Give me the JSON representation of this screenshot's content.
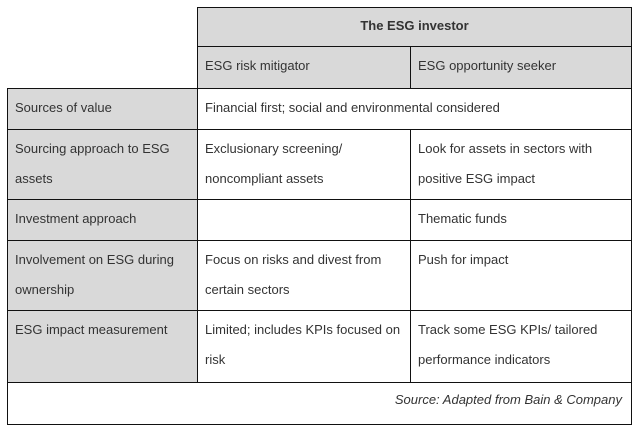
{
  "table": {
    "group_header": "The ESG investor",
    "columns": [
      "ESG risk mitigator",
      "ESG opportunity seeker"
    ],
    "rows": [
      {
        "label": "Sources of value",
        "merged": "Financial first; social and environmental considered"
      },
      {
        "label": [
          "Sourcing approach to ESG",
          "assets"
        ],
        "c1": [
          "Exclusionary screening/",
          "noncompliant assets"
        ],
        "c2": [
          "Look for assets in sectors with",
          "positive ESG impact"
        ]
      },
      {
        "label": "Investment approach",
        "c1": "",
        "c2": "Thematic funds"
      },
      {
        "label": [
          "Involvement on ESG during",
          "ownership"
        ],
        "c1": [
          "Focus on risks and divest from",
          "certain sectors"
        ],
        "c2": "Push for impact"
      },
      {
        "label": "ESG impact measurement",
        "c1": [
          "Limited; includes KPIs focused on",
          "risk"
        ],
        "c2": [
          "Track some ESG KPIs/ tailored",
          "performance indicators"
        ]
      }
    ],
    "source": "Source: Adapted from Bain & Company"
  },
  "colors": {
    "header_fill": "#d9d9d9",
    "border": "#111111",
    "text": "#333333"
  }
}
